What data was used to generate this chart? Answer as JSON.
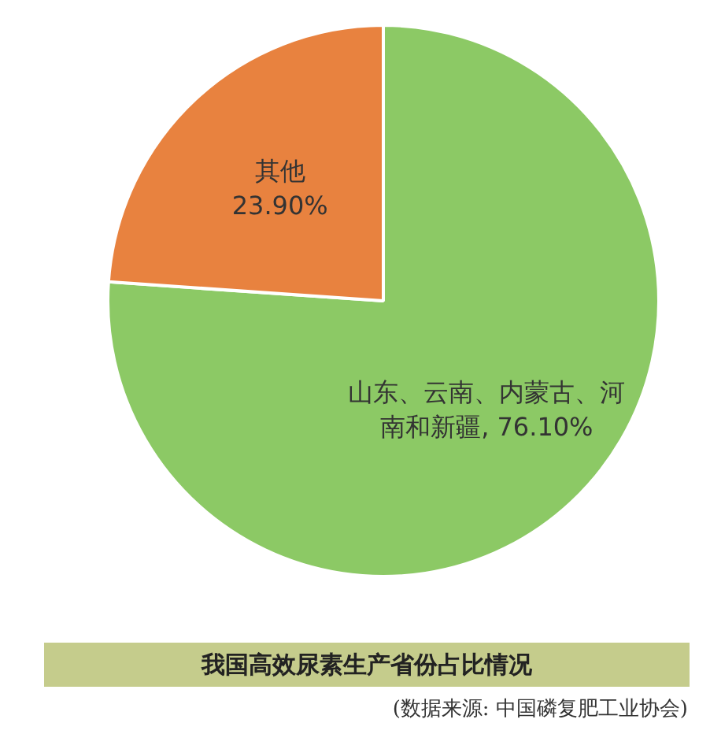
{
  "chart_data": {
    "type": "pie",
    "title": "我国高效尿素生产省份占比情况",
    "annotations": [
      "(数据来源: 中国磷复肥工业协会)"
    ],
    "categories": [
      "山东、云南、内蒙古、河南和新疆",
      "其他"
    ],
    "values": [
      76.1,
      23.9
    ],
    "colors": [
      "#8cc965",
      "#e8823f"
    ],
    "value_labels": [
      "76.10%",
      "23.90%"
    ],
    "legend": false
  }
}
